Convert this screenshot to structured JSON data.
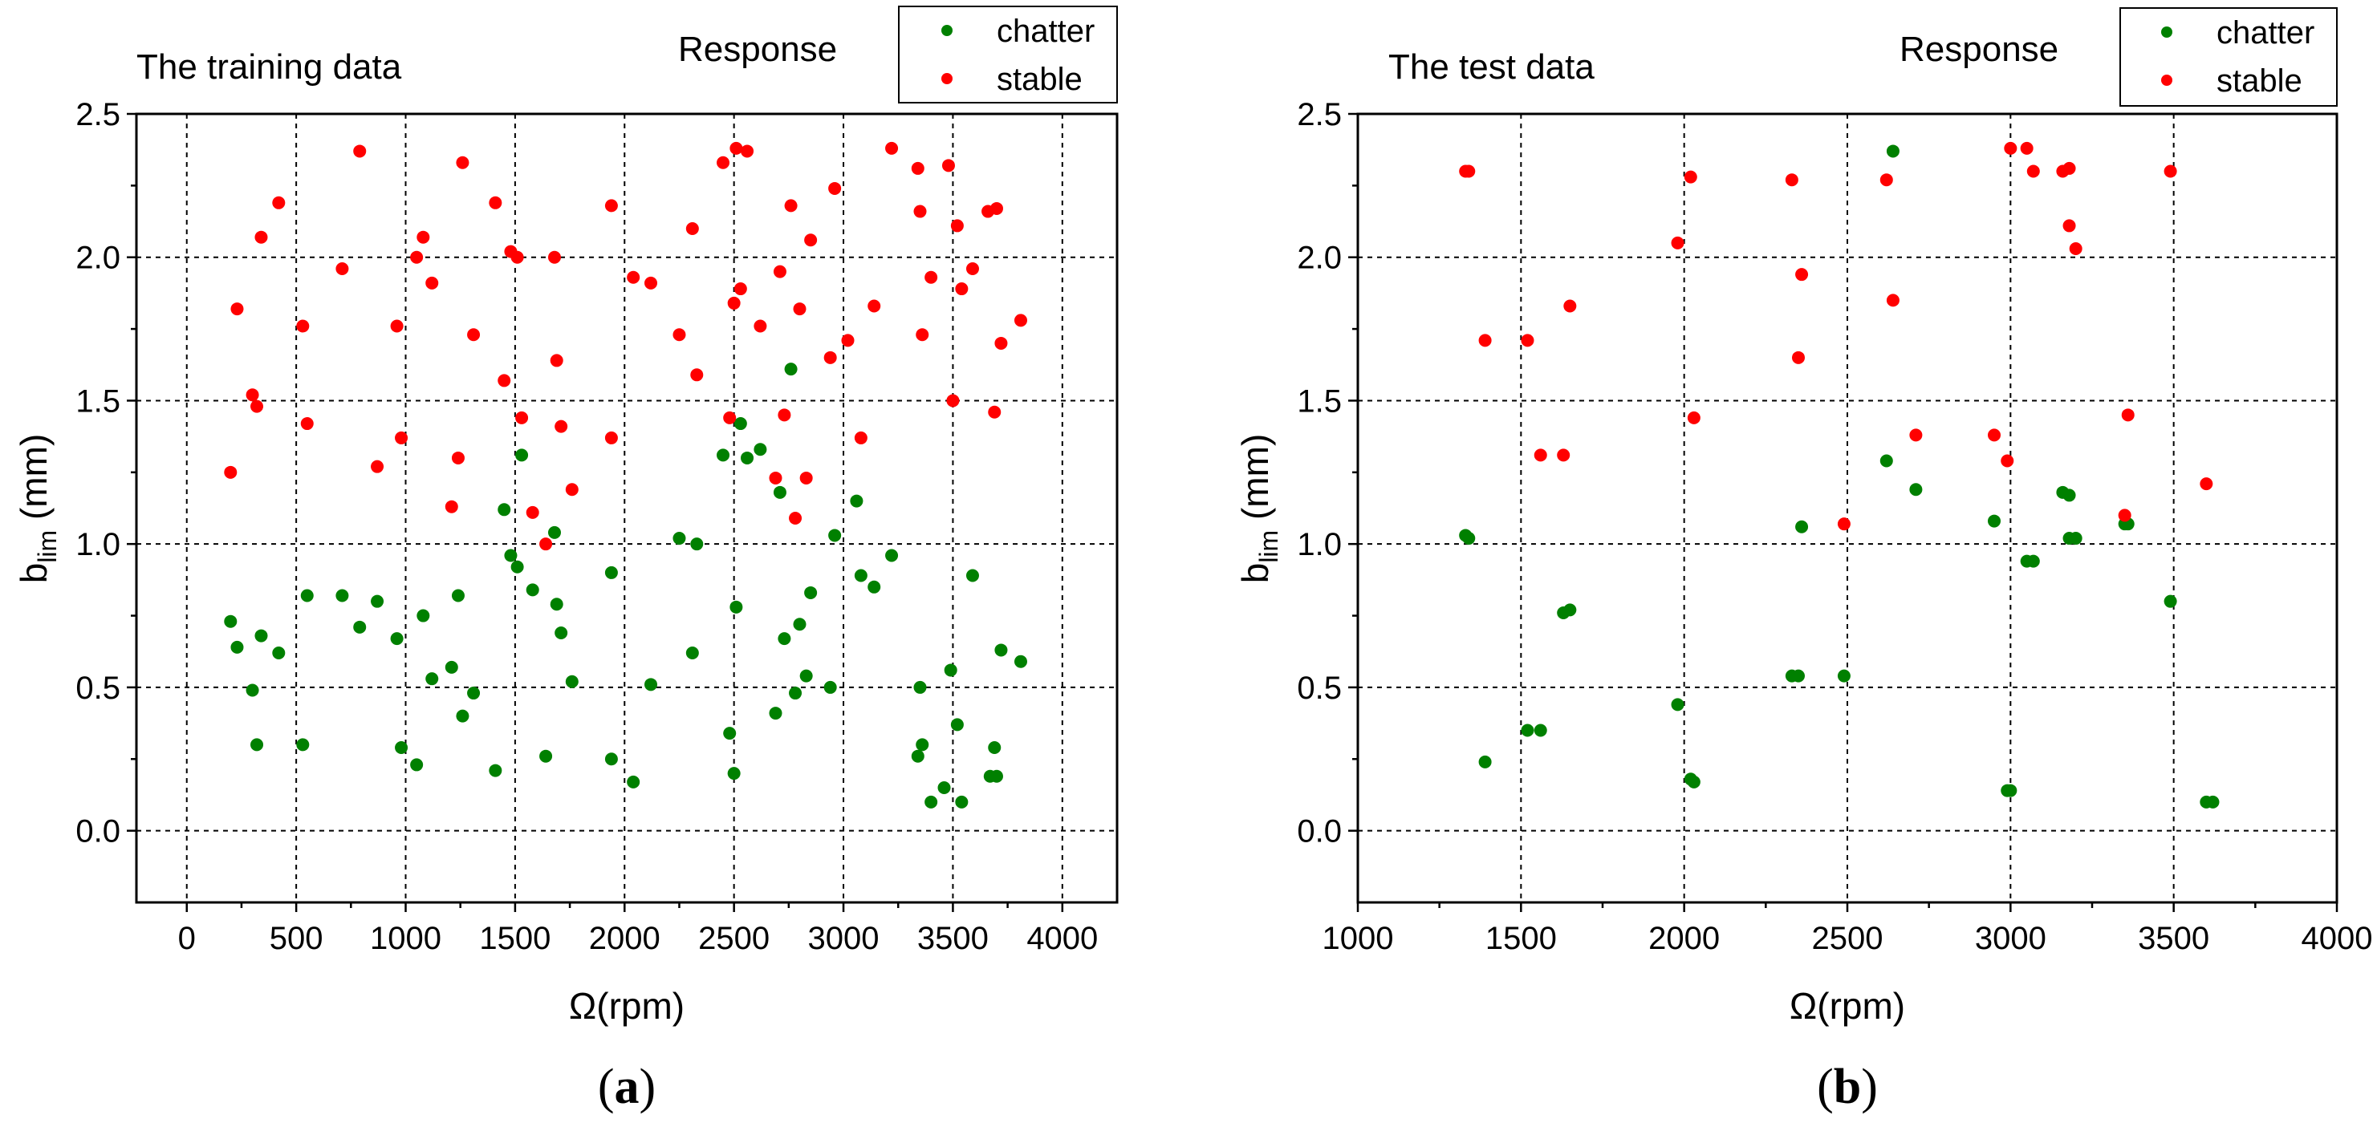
{
  "chart_data": [
    {
      "type": "scatter",
      "panel": "a",
      "title": "The training data",
      "caption_letter": "a",
      "xlabel": "Ω(rpm)",
      "ylabel_main": "b",
      "ylabel_sub": "lim",
      "ylabel_unit": " (mm)",
      "xlim": [
        -230,
        4250
      ],
      "ylim": [
        -0.25,
        2.5
      ],
      "xticks": [
        0,
        500,
        1000,
        1500,
        2000,
        2500,
        3000,
        3500,
        4000
      ],
      "yticks": [
        0.0,
        0.5,
        1.0,
        1.5,
        2.0,
        2.5
      ],
      "ytick_labels": [
        "0.0",
        "0.5",
        "1.0",
        "1.5",
        "2.0",
        "2.5"
      ],
      "legend_title": "Response",
      "series": [
        {
          "name": "chatter",
          "color": "#008000",
          "points": [
            [
              200,
              0.73
            ],
            [
              230,
              0.64
            ],
            [
              300,
              0.49
            ],
            [
              320,
              0.3
            ],
            [
              340,
              0.68
            ],
            [
              420,
              0.62
            ],
            [
              530,
              0.3
            ],
            [
              550,
              0.82
            ],
            [
              710,
              0.82
            ],
            [
              790,
              0.71
            ],
            [
              870,
              0.8
            ],
            [
              960,
              0.67
            ],
            [
              980,
              0.29
            ],
            [
              1050,
              0.23
            ],
            [
              1080,
              0.75
            ],
            [
              1120,
              0.53
            ],
            [
              1210,
              0.57
            ],
            [
              1240,
              0.82
            ],
            [
              1260,
              0.4
            ],
            [
              1310,
              0.48
            ],
            [
              1410,
              0.21
            ],
            [
              1450,
              1.12
            ],
            [
              1480,
              0.96
            ],
            [
              1510,
              0.92
            ],
            [
              1530,
              1.31
            ],
            [
              1580,
              0.84
            ],
            [
              1640,
              0.26
            ],
            [
              1680,
              1.04
            ],
            [
              1690,
              0.79
            ],
            [
              1710,
              0.69
            ],
            [
              1760,
              0.52
            ],
            [
              1940,
              0.9
            ],
            [
              1940,
              0.25
            ],
            [
              2040,
              0.17
            ],
            [
              2120,
              0.51
            ],
            [
              2250,
              1.02
            ],
            [
              2310,
              0.62
            ],
            [
              2330,
              1.0
            ],
            [
              2450,
              1.31
            ],
            [
              2480,
              0.34
            ],
            [
              2500,
              0.2
            ],
            [
              2510,
              0.78
            ],
            [
              2530,
              1.42
            ],
            [
              2560,
              1.3
            ],
            [
              2620,
              1.33
            ],
            [
              2690,
              0.41
            ],
            [
              2710,
              1.18
            ],
            [
              2730,
              0.67
            ],
            [
              2760,
              1.61
            ],
            [
              2780,
              0.48
            ],
            [
              2800,
              0.72
            ],
            [
              2830,
              0.54
            ],
            [
              2850,
              0.83
            ],
            [
              2940,
              0.5
            ],
            [
              2960,
              1.03
            ],
            [
              3060,
              1.15
            ],
            [
              3080,
              0.89
            ],
            [
              3140,
              0.85
            ],
            [
              3220,
              0.96
            ],
            [
              3340,
              0.26
            ],
            [
              3350,
              0.5
            ],
            [
              3360,
              0.3
            ],
            [
              3400,
              0.1
            ],
            [
              3460,
              0.15
            ],
            [
              3490,
              0.56
            ],
            [
              3520,
              0.37
            ],
            [
              3540,
              0.1
            ],
            [
              3590,
              0.89
            ],
            [
              3670,
              0.19
            ],
            [
              3690,
              0.29
            ],
            [
              3700,
              0.19
            ],
            [
              3720,
              0.63
            ],
            [
              3810,
              0.59
            ]
          ]
        },
        {
          "name": "stable",
          "color": "#ff0000",
          "points": [
            [
              200,
              1.25
            ],
            [
              230,
              1.82
            ],
            [
              300,
              1.52
            ],
            [
              320,
              1.48
            ],
            [
              340,
              2.07
            ],
            [
              420,
              2.19
            ],
            [
              530,
              1.76
            ],
            [
              550,
              1.42
            ],
            [
              710,
              1.96
            ],
            [
              790,
              2.37
            ],
            [
              870,
              1.27
            ],
            [
              960,
              1.76
            ],
            [
              980,
              1.37
            ],
            [
              1050,
              2.0
            ],
            [
              1080,
              2.07
            ],
            [
              1120,
              1.91
            ],
            [
              1210,
              1.13
            ],
            [
              1240,
              1.3
            ],
            [
              1260,
              2.33
            ],
            [
              1310,
              1.73
            ],
            [
              1410,
              2.19
            ],
            [
              1450,
              1.57
            ],
            [
              1480,
              2.02
            ],
            [
              1510,
              2.0
            ],
            [
              1530,
              1.44
            ],
            [
              1580,
              1.11
            ],
            [
              1640,
              1.0
            ],
            [
              1680,
              2.0
            ],
            [
              1690,
              1.64
            ],
            [
              1710,
              1.41
            ],
            [
              1760,
              1.19
            ],
            [
              1940,
              1.37
            ],
            [
              1940,
              2.18
            ],
            [
              2040,
              1.93
            ],
            [
              2120,
              1.91
            ],
            [
              2250,
              1.73
            ],
            [
              2310,
              2.1
            ],
            [
              2330,
              1.59
            ],
            [
              2450,
              2.33
            ],
            [
              2480,
              1.44
            ],
            [
              2500,
              1.84
            ],
            [
              2510,
              2.38
            ],
            [
              2530,
              1.89
            ],
            [
              2560,
              2.37
            ],
            [
              2620,
              1.76
            ],
            [
              2690,
              1.23
            ],
            [
              2710,
              1.95
            ],
            [
              2730,
              1.45
            ],
            [
              2760,
              2.18
            ],
            [
              2780,
              1.09
            ],
            [
              2800,
              1.82
            ],
            [
              2830,
              1.23
            ],
            [
              2850,
              2.06
            ],
            [
              2940,
              1.65
            ],
            [
              2960,
              2.24
            ],
            [
              3020,
              1.71
            ],
            [
              3080,
              1.37
            ],
            [
              3140,
              1.83
            ],
            [
              3220,
              2.38
            ],
            [
              3340,
              2.31
            ],
            [
              3350,
              2.16
            ],
            [
              3360,
              1.73
            ],
            [
              3400,
              1.93
            ],
            [
              3480,
              2.32
            ],
            [
              3500,
              1.5
            ],
            [
              3520,
              2.11
            ],
            [
              3540,
              1.89
            ],
            [
              3590,
              1.96
            ],
            [
              3660,
              2.16
            ],
            [
              3690,
              1.46
            ],
            [
              3700,
              2.17
            ],
            [
              3720,
              1.7
            ],
            [
              3810,
              1.78
            ]
          ]
        }
      ]
    },
    {
      "type": "scatter",
      "panel": "b",
      "title": "The test data",
      "caption_letter": "b",
      "xlabel": "Ω(rpm)",
      "ylabel_main": "b",
      "ylabel_sub": "lim",
      "ylabel_unit": " (mm)",
      "xlim": [
        1000,
        4000
      ],
      "ylim": [
        -0.25,
        2.5
      ],
      "xticks": [
        1000,
        1500,
        2000,
        2500,
        3000,
        3500,
        4000
      ],
      "yticks": [
        0.0,
        0.5,
        1.0,
        1.5,
        2.0,
        2.5
      ],
      "ytick_labels": [
        "0.0",
        "0.5",
        "1.0",
        "1.5",
        "2.0",
        "2.5"
      ],
      "legend_title": "Response",
      "series": [
        {
          "name": "chatter",
          "color": "#008000",
          "points": [
            [
              1330,
              1.03
            ],
            [
              1340,
              1.02
            ],
            [
              1390,
              0.24
            ],
            [
              1520,
              0.35
            ],
            [
              1560,
              0.35
            ],
            [
              1630,
              0.76
            ],
            [
              1650,
              0.77
            ],
            [
              1980,
              0.44
            ],
            [
              2020,
              0.18
            ],
            [
              2030,
              0.17
            ],
            [
              2330,
              0.54
            ],
            [
              2350,
              0.54
            ],
            [
              2360,
              1.06
            ],
            [
              2490,
              0.54
            ],
            [
              2620,
              1.29
            ],
            [
              2640,
              2.37
            ],
            [
              2710,
              1.19
            ],
            [
              2950,
              1.08
            ],
            [
              2990,
              0.14
            ],
            [
              3000,
              0.14
            ],
            [
              3050,
              0.94
            ],
            [
              3070,
              0.94
            ],
            [
              3160,
              1.18
            ],
            [
              3180,
              1.17
            ],
            [
              3180,
              1.02
            ],
            [
              3200,
              1.02
            ],
            [
              3350,
              1.07
            ],
            [
              3360,
              1.07
            ],
            [
              3490,
              0.8
            ],
            [
              3600,
              0.1
            ],
            [
              3620,
              0.1
            ]
          ]
        },
        {
          "name": "stable",
          "color": "#ff0000",
          "points": [
            [
              1330,
              2.3
            ],
            [
              1340,
              2.3
            ],
            [
              1390,
              1.71
            ],
            [
              1520,
              1.71
            ],
            [
              1560,
              1.31
            ],
            [
              1630,
              1.31
            ],
            [
              1650,
              1.83
            ],
            [
              1980,
              2.05
            ],
            [
              2020,
              2.28
            ],
            [
              2030,
              1.44
            ],
            [
              2330,
              2.27
            ],
            [
              2350,
              1.65
            ],
            [
              2360,
              1.94
            ],
            [
              2490,
              1.07
            ],
            [
              2620,
              2.27
            ],
            [
              2640,
              1.85
            ],
            [
              2710,
              1.38
            ],
            [
              2950,
              1.38
            ],
            [
              2990,
              1.29
            ],
            [
              3000,
              2.38
            ],
            [
              3050,
              2.38
            ],
            [
              3070,
              2.3
            ],
            [
              3160,
              2.3
            ],
            [
              3180,
              2.31
            ],
            [
              3180,
              2.11
            ],
            [
              3200,
              2.03
            ],
            [
              3350,
              1.1
            ],
            [
              3360,
              1.45
            ],
            [
              3490,
              2.3
            ],
            [
              3600,
              1.21
            ]
          ]
        }
      ]
    }
  ]
}
